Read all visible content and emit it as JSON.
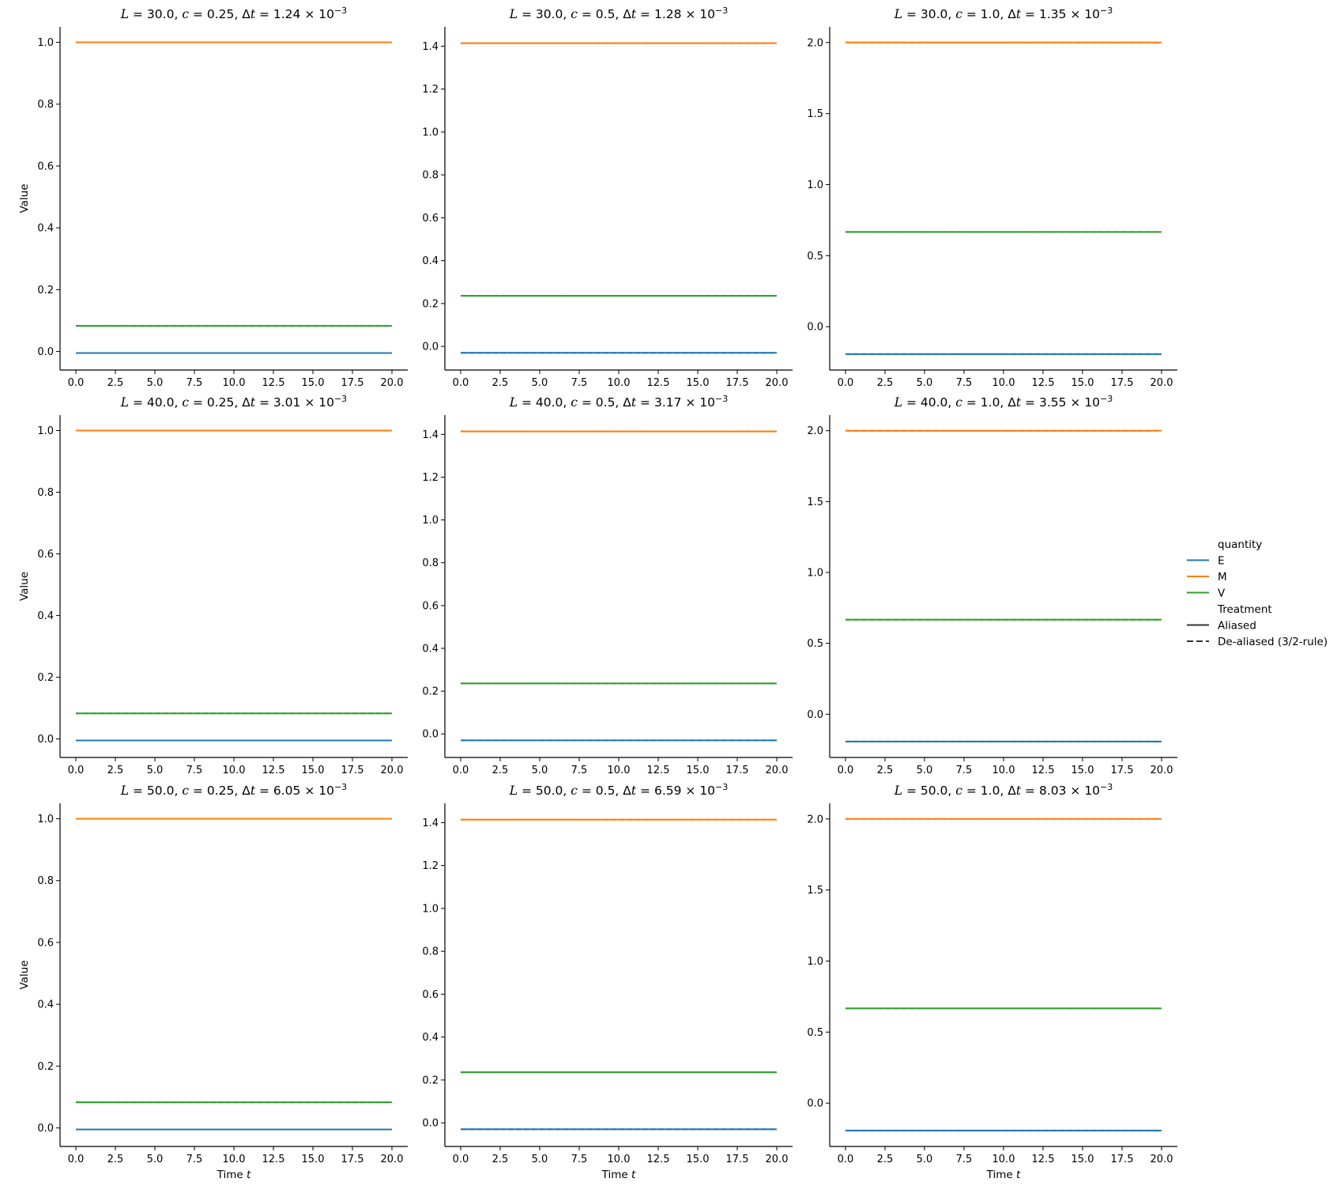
{
  "chart_data": {
    "type": "line",
    "layout": "3x3 facet grid",
    "x_ticks": [
      "0.0",
      "2.5",
      "5.0",
      "7.5",
      "10.0",
      "12.5",
      "15.0",
      "17.5",
      "20.0"
    ],
    "x_values": [
      0.0,
      2.5,
      5.0,
      7.5,
      10.0,
      12.5,
      15.0,
      17.5,
      20.0
    ],
    "xlim": [
      -1.0,
      21.0
    ],
    "xlabel": "Time",
    "xlabel_var": "t",
    "ylabel": "Value",
    "t_range": [
      0.0,
      20.0
    ],
    "grid": false,
    "legend": {
      "placement": "right",
      "hue_title": "quantity",
      "style_title": "Treatment",
      "hue_items": [
        {
          "name": "E",
          "color": "#1f77b4"
        },
        {
          "name": "M",
          "color": "#ff7f0e"
        },
        {
          "name": "V",
          "color": "#2ca02c"
        }
      ],
      "style_items": [
        {
          "name": "Aliased",
          "dash": "solid"
        },
        {
          "name": "De-aliased (3/2-rule)",
          "dash": "dashed"
        }
      ]
    },
    "columns": [
      {
        "c": "0.25",
        "ylim": [
          -0.06,
          1.05
        ],
        "yticks": [
          0.0,
          0.2,
          0.4,
          0.6,
          0.8,
          1.0
        ],
        "ytick_labels": [
          "0.0",
          "0.2",
          "0.4",
          "0.6",
          "0.8",
          "1.0"
        ],
        "values": {
          "E": -0.005,
          "M": 1.0,
          "V": 0.083
        }
      },
      {
        "c": "0.5",
        "ylim": [
          -0.11,
          1.49
        ],
        "yticks": [
          0.0,
          0.2,
          0.4,
          0.6,
          0.8,
          1.0,
          1.2,
          1.4
        ],
        "ytick_labels": [
          "0.0",
          "0.2",
          "0.4",
          "0.6",
          "0.8",
          "1.0",
          "1.2",
          "1.4"
        ],
        "values": {
          "E": -0.03,
          "M": 1.414,
          "V": 0.236
        }
      },
      {
        "c": "1.0",
        "ylim": [
          -0.305,
          2.11
        ],
        "yticks": [
          0.0,
          0.5,
          1.0,
          1.5,
          2.0
        ],
        "ytick_labels": [
          "0.0",
          "0.5",
          "1.0",
          "1.5",
          "2.0"
        ],
        "values": {
          "E": -0.193,
          "M": 2.0,
          "V": 0.667
        }
      }
    ],
    "panels": [
      {
        "L": "30.0",
        "c": "0.25",
        "dt_mant": "1.24",
        "dt_exp": "−3"
      },
      {
        "L": "30.0",
        "c": "0.5",
        "dt_mant": "1.28",
        "dt_exp": "−3"
      },
      {
        "L": "30.0",
        "c": "1.0",
        "dt_mant": "1.35",
        "dt_exp": "−3"
      },
      {
        "L": "40.0",
        "c": "0.25",
        "dt_mant": "3.01",
        "dt_exp": "−3"
      },
      {
        "L": "40.0",
        "c": "0.5",
        "dt_mant": "3.17",
        "dt_exp": "−3"
      },
      {
        "L": "40.0",
        "c": "1.0",
        "dt_mant": "3.55",
        "dt_exp": "−3"
      },
      {
        "L": "50.0",
        "c": "0.25",
        "dt_mant": "6.05",
        "dt_exp": "−3"
      },
      {
        "L": "50.0",
        "c": "0.5",
        "dt_mant": "6.59",
        "dt_exp": "−3"
      },
      {
        "L": "50.0",
        "c": "1.0",
        "dt_mant": "8.03",
        "dt_exp": "−3"
      }
    ]
  }
}
